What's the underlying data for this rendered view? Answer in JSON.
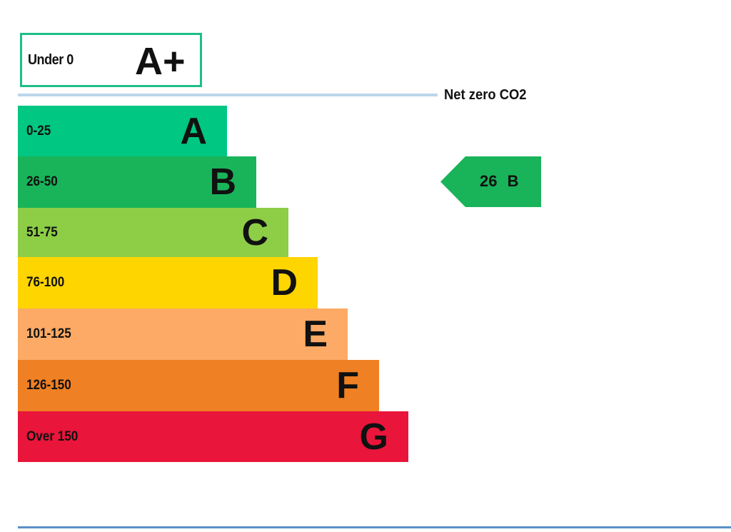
{
  "chart_data": {
    "type": "bar",
    "top_band": {
      "range": "Under 0",
      "letter": "A+",
      "color": "#1dbf86"
    },
    "net_zero_label": "Net zero CO2",
    "bands": [
      {
        "range": "0-25",
        "letter": "A",
        "color": "#00c781"
      },
      {
        "range": "26-50",
        "letter": "B",
        "color": "#19b459"
      },
      {
        "range": "51-75",
        "letter": "C",
        "color": "#8dce46"
      },
      {
        "range": "76-100",
        "letter": "D",
        "color": "#ffd500"
      },
      {
        "range": "101-125",
        "letter": "E",
        "color": "#fcaa65"
      },
      {
        "range": "126-150",
        "letter": "F",
        "color": "#ef8023"
      },
      {
        "range": "Over 150",
        "letter": "G",
        "color": "#e9153b"
      }
    ],
    "current": {
      "value": 26,
      "letter": "B",
      "label": "26 B",
      "color": "#19b459"
    }
  }
}
